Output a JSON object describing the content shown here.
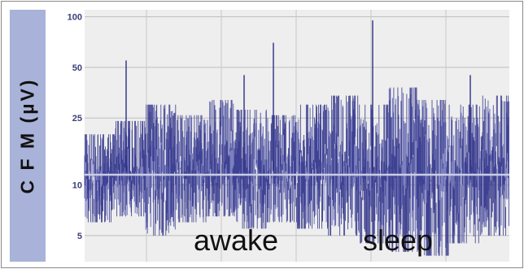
{
  "chart_data": {
    "type": "line",
    "title": "",
    "ylabel": "C F M (µV)",
    "xlabel": "",
    "y_scale": "log",
    "ylim": [
      3.5,
      110
    ],
    "y_ticks": [
      5,
      10,
      25,
      50,
      100
    ],
    "y_tick_labels": [
      "5",
      "10",
      "25",
      "50",
      "100"
    ],
    "grid": true,
    "reference_line_y": 11.5,
    "annotations": [
      "awake",
      "sleep"
    ],
    "series": [
      {
        "line_color": "#2d2f86",
        "fill_color": "#6f73b8",
        "segments": [
          {
            "upper": 20,
            "lower": 6
          },
          {
            "upper": 24,
            "lower": 6.5
          },
          {
            "upper": 30,
            "lower": 5
          },
          {
            "upper": 26,
            "lower": 6
          },
          {
            "upper": 32,
            "lower": 6.5
          },
          {
            "upper": 28,
            "lower": 5.5
          },
          {
            "upper": 26,
            "lower": 6
          },
          {
            "upper": 30,
            "lower": 5.5
          },
          {
            "upper": 34,
            "lower": 5
          },
          {
            "upper": 30,
            "lower": 4.5
          },
          {
            "upper": 38,
            "lower": 4
          },
          {
            "upper": 32,
            "lower": 3.8
          },
          {
            "upper": 30,
            "lower": 4.5
          },
          {
            "upper": 34,
            "lower": 5
          }
        ],
        "spikes": [
          55,
          45,
          70,
          95,
          45
        ]
      }
    ]
  }
}
